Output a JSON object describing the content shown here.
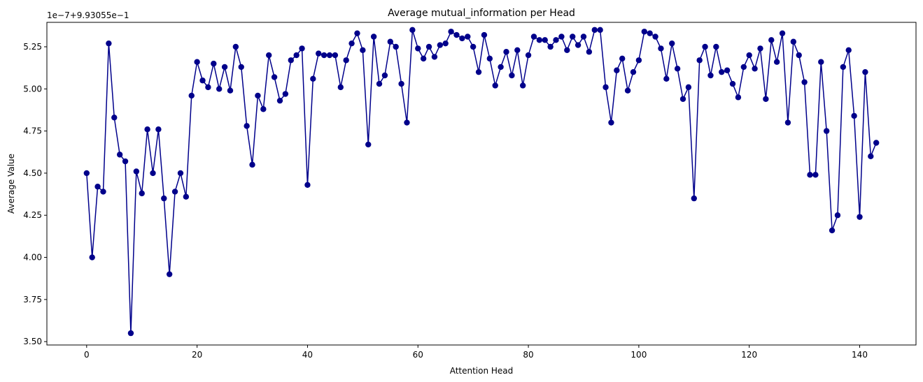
{
  "chart_data": {
    "type": "line",
    "title": "Average mutual_information per Head",
    "xlabel": "Attention Head",
    "ylabel": "Average Value",
    "y_offset_text": "1e−7+9.93055e−1",
    "xlim": [
      -7.2,
      150.2
    ],
    "ylim": [
      3.48,
      5.395
    ],
    "x_ticks": [
      0,
      20,
      40,
      60,
      80,
      100,
      120,
      140
    ],
    "x_tick_labels": [
      "0",
      "20",
      "40",
      "60",
      "80",
      "100",
      "120",
      "140"
    ],
    "y_ticks": [
      3.5,
      3.75,
      4.0,
      4.25,
      4.5,
      4.75,
      5.0,
      5.25
    ],
    "y_tick_labels": [
      "3.50",
      "3.75",
      "4.00",
      "4.25",
      "4.50",
      "4.75",
      "5.00",
      "5.25"
    ],
    "grid": false,
    "legend": "none",
    "series": [
      {
        "color": "#00008b",
        "marker": "circle",
        "x_start": 0,
        "values": [
          4.5,
          4.0,
          4.42,
          4.39,
          5.27,
          4.83,
          4.61,
          4.57,
          3.55,
          4.51,
          4.38,
          4.76,
          4.5,
          4.76,
          4.35,
          3.9,
          4.39,
          4.5,
          4.36,
          4.96,
          5.16,
          5.05,
          5.01,
          5.15,
          5.0,
          5.13,
          4.99,
          5.25,
          5.13,
          4.78,
          4.55,
          4.96,
          4.88,
          5.2,
          5.07,
          4.93,
          4.97,
          5.17,
          5.2,
          5.24,
          4.43,
          5.06,
          5.21,
          5.2,
          5.2,
          5.2,
          5.01,
          5.17,
          5.27,
          5.33,
          5.23,
          4.67,
          5.31,
          5.03,
          5.08,
          5.28,
          5.25,
          5.03,
          4.8,
          5.35,
          5.24,
          5.18,
          5.25,
          5.19,
          5.26,
          5.27,
          5.34,
          5.32,
          5.3,
          5.31,
          5.25,
          5.1,
          5.32,
          5.18,
          5.02,
          5.13,
          5.22,
          5.08,
          5.23,
          5.02,
          5.2,
          5.31,
          5.29,
          5.29,
          5.25,
          5.29,
          5.31,
          5.23,
          5.31,
          5.26,
          5.31,
          5.22,
          5.35,
          5.35,
          5.01,
          4.8,
          5.11,
          5.18,
          4.99,
          5.1,
          5.17,
          5.34,
          5.33,
          5.31,
          5.24,
          5.06,
          5.27,
          5.12,
          4.94,
          5.01,
          4.35,
          5.17,
          5.25,
          5.08,
          5.25,
          5.1,
          5.11,
          5.03,
          4.95,
          5.13,
          5.2,
          5.12,
          5.24,
          4.94,
          5.29,
          5.16,
          5.33,
          4.8,
          5.28,
          5.2,
          5.04,
          4.49,
          4.49,
          5.16,
          4.75,
          4.16,
          4.25,
          5.13,
          5.23,
          4.84,
          4.24,
          5.1,
          4.6,
          4.68
        ]
      }
    ]
  }
}
